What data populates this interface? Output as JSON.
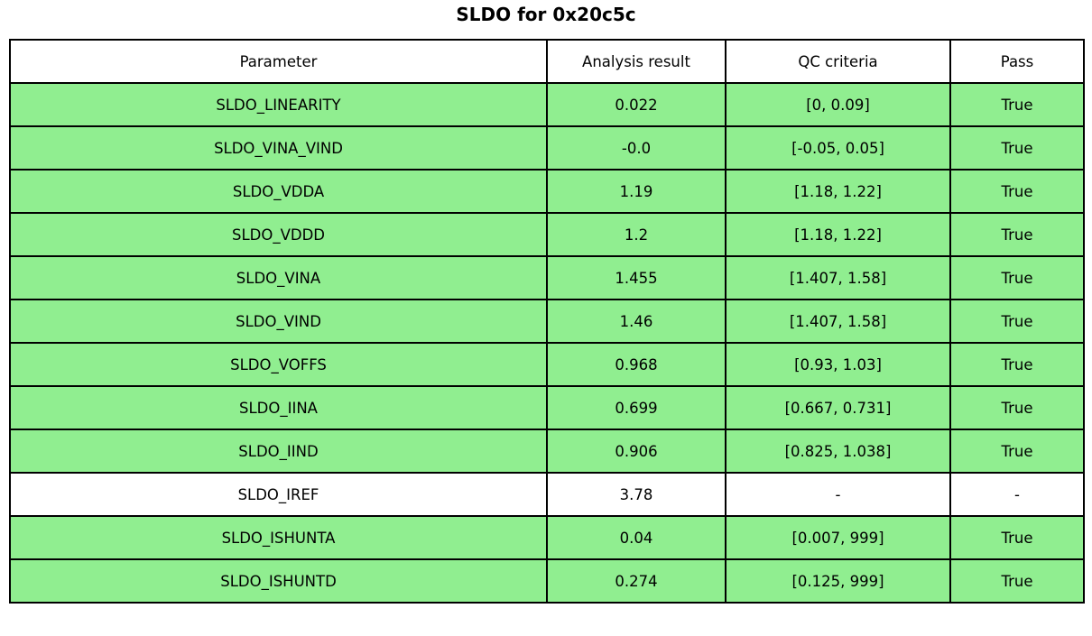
{
  "title": "SLDO for 0x20c5c",
  "colors": {
    "pass_row_bg": "#90EE90",
    "neutral_row_bg": "#FFFFFF",
    "border": "#000000",
    "text": "#000000"
  },
  "chart_data": {
    "type": "table",
    "title": "SLDO for 0x20c5c",
    "columns": [
      "Parameter",
      "Analysis result",
      "QC criteria",
      "Pass"
    ],
    "rows": [
      [
        "SLDO_LINEARITY",
        "0.022",
        "[0, 0.09]",
        "True"
      ],
      [
        "SLDO_VINA_VIND",
        "-0.0",
        "[-0.05, 0.05]",
        "True"
      ],
      [
        "SLDO_VDDA",
        "1.19",
        "[1.18, 1.22]",
        "True"
      ],
      [
        "SLDO_VDDD",
        "1.2",
        "[1.18, 1.22]",
        "True"
      ],
      [
        "SLDO_VINA",
        "1.455",
        "[1.407, 1.58]",
        "True"
      ],
      [
        "SLDO_VIND",
        "1.46",
        "[1.407, 1.58]",
        "True"
      ],
      [
        "SLDO_VOFFS",
        "0.968",
        "[0.93, 1.03]",
        "True"
      ],
      [
        "SLDO_IINA",
        "0.699",
        "[0.667, 0.731]",
        "True"
      ],
      [
        "SLDO_IIND",
        "0.906",
        "[0.825, 1.038]",
        "True"
      ],
      [
        "SLDO_IREF",
        "3.78",
        "-",
        "-"
      ],
      [
        "SLDO_ISHUNTA",
        "0.04",
        "[0.007, 999]",
        "True"
      ],
      [
        "SLDO_ISHUNTD",
        "0.274",
        "[0.125, 999]",
        "True"
      ]
    ],
    "row_highlight": [
      true,
      true,
      true,
      true,
      true,
      true,
      true,
      true,
      true,
      false,
      true,
      true
    ],
    "legend_position": "none",
    "grid": true
  }
}
